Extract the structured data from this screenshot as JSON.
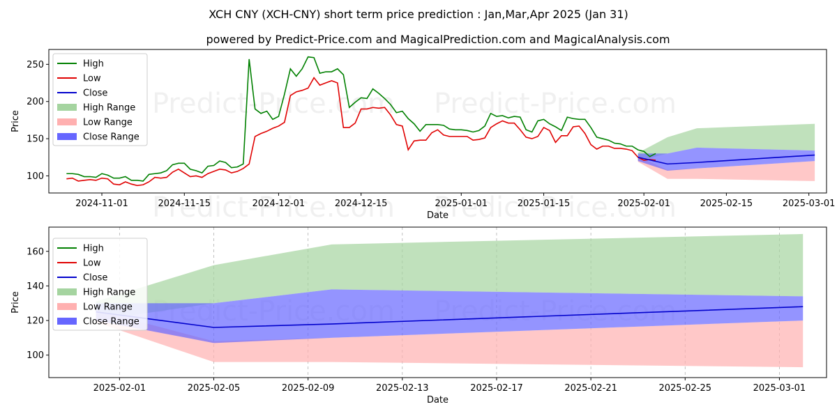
{
  "title": "XCH CNY (XCH-CNY) short term price prediction : Jan,Mar,Apr 2025 (Jan 31)",
  "subtitle": "powered by Predict-Price.com and MagicalPrediction.com and MagicalAnalysis.com",
  "watermark": "Predict-Price.com",
  "colors": {
    "high": "#008000",
    "low": "#e00000",
    "close": "#0000cc",
    "high_range": "#a5d4a0",
    "low_range": "#ffb0b0",
    "close_range": "#6666ff"
  },
  "chart_data": [
    {
      "type": "line",
      "name": "history",
      "xlabel": "Date",
      "ylabel": "Price",
      "xlim": [
        "2024-10-23",
        "2025-03-04"
      ],
      "ylim": [
        77,
        270
      ],
      "x_ticks": [
        "2024-11-01",
        "2024-11-15",
        "2024-12-01",
        "2024-12-15",
        "2025-01-01",
        "2025-01-15",
        "2025-02-01",
        "2025-02-15",
        "2025-03-01"
      ],
      "y_ticks": [
        100,
        150,
        200,
        250
      ],
      "legend": {
        "position": "top-left",
        "entries": [
          "High",
          "Low",
          "Close",
          "High Range",
          "Low Range",
          "Close Range"
        ]
      },
      "series": [
        {
          "name": "High",
          "x0": "2024-10-26",
          "values": [
            103,
            103,
            102,
            99,
            99,
            98,
            103,
            101,
            97,
            97,
            99,
            94,
            94,
            93,
            102,
            103,
            104,
            107,
            115,
            117,
            117,
            109,
            107,
            104,
            113,
            114,
            120,
            118,
            111,
            112,
            116,
            257,
            190,
            184,
            187,
            176,
            180,
            210,
            244,
            234,
            244,
            260,
            259,
            238,
            240,
            240,
            244,
            236,
            192,
            199,
            205,
            204,
            217,
            211,
            204,
            196,
            185,
            187,
            177,
            170,
            160,
            169,
            169,
            169,
            168,
            163,
            162,
            162,
            161,
            159,
            161,
            167,
            184,
            180,
            181,
            178,
            180,
            179,
            162,
            159,
            174,
            176,
            170,
            166,
            161,
            179,
            177,
            176,
            176,
            165,
            152,
            150,
            148,
            144,
            143,
            140,
            140,
            135,
            133,
            126,
            130
          ]
        },
        {
          "name": "Low",
          "x0": "2024-10-26",
          "values": [
            96,
            97,
            93,
            94,
            95,
            94,
            97,
            96,
            89,
            88,
            92,
            89,
            87,
            88,
            92,
            98,
            97,
            98,
            105,
            109,
            104,
            99,
            100,
            98,
            103,
            106,
            109,
            108,
            104,
            106,
            110,
            116,
            153,
            157,
            160,
            164,
            167,
            172,
            208,
            213,
            215,
            218,
            232,
            222,
            225,
            228,
            225,
            165,
            165,
            171,
            190,
            190,
            192,
            191,
            192,
            182,
            169,
            167,
            135,
            147,
            148,
            148,
            158,
            162,
            155,
            153,
            153,
            153,
            153,
            148,
            149,
            151,
            165,
            170,
            174,
            171,
            171,
            162,
            152,
            150,
            153,
            165,
            161,
            145,
            154,
            154,
            166,
            167,
            157,
            142,
            136,
            140,
            140,
            137,
            137,
            136,
            134,
            125,
            121,
            122,
            121
          ]
        }
      ]
    },
    {
      "type": "area",
      "name": "forecast",
      "xlabel": "Date",
      "ylabel": "Price",
      "xlim": [
        "2025-01-29",
        "2025-03-03"
      ],
      "ylim": [
        87,
        174
      ],
      "x_ticks": [
        "2025-02-01",
        "2025-02-05",
        "2025-02-09",
        "2025-02-13",
        "2025-02-17",
        "2025-02-21",
        "2025-02-25",
        "2025-03-01"
      ],
      "y_ticks": [
        100,
        120,
        140,
        160
      ],
      "legend": {
        "position": "top-left",
        "entries": [
          "High",
          "Low",
          "Close",
          "High Range",
          "Low Range",
          "Close Range"
        ]
      },
      "x": [
        "2025-01-31",
        "2025-02-05",
        "2025-02-10",
        "2025-03-02"
      ],
      "close": [
        125,
        116,
        118,
        128
      ],
      "high_range": {
        "upper": [
          131,
          152,
          164,
          170
        ],
        "lower": [
          120,
          130,
          138,
          134
        ]
      },
      "low_range": {
        "upper": [
          126,
          108,
          110,
          120
        ],
        "lower": [
          119,
          96,
          96,
          93
        ]
      },
      "close_range": {
        "upper": [
          130,
          130,
          138,
          134
        ],
        "lower": [
          120,
          107,
          110,
          120
        ]
      }
    }
  ]
}
